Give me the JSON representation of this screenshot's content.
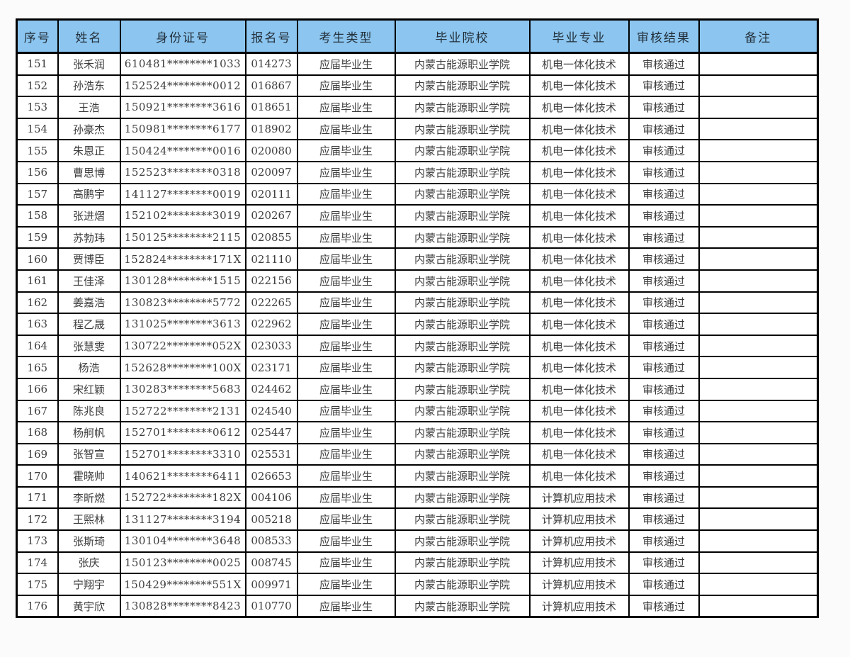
{
  "colors": {
    "header_bg": "#8cc6f0",
    "grid_line": "#000000",
    "body_text": "#3c3c3c",
    "page_bg": "#fbfbfb"
  },
  "table": {
    "headers": [
      "序号",
      "姓名",
      "身份证号",
      "报名号",
      "考生类型",
      "毕业院校",
      "毕业专业",
      "审核结果",
      "备注"
    ],
    "rows": [
      [
        "151",
        "张禾润",
        "610481********1033",
        "014273",
        "应届毕业生",
        "内蒙古能源职业学院",
        "机电一体化技术",
        "审核通过",
        ""
      ],
      [
        "152",
        "孙浩东",
        "152524********0012",
        "016867",
        "应届毕业生",
        "内蒙古能源职业学院",
        "机电一体化技术",
        "审核通过",
        ""
      ],
      [
        "153",
        "王浩",
        "150921********3616",
        "018651",
        "应届毕业生",
        "内蒙古能源职业学院",
        "机电一体化技术",
        "审核通过",
        ""
      ],
      [
        "154",
        "孙豪杰",
        "150981********6177",
        "018902",
        "应届毕业生",
        "内蒙古能源职业学院",
        "机电一体化技术",
        "审核通过",
        ""
      ],
      [
        "155",
        "朱恩正",
        "150424********0016",
        "020080",
        "应届毕业生",
        "内蒙古能源职业学院",
        "机电一体化技术",
        "审核通过",
        ""
      ],
      [
        "156",
        "曹思博",
        "152523********0318",
        "020097",
        "应届毕业生",
        "内蒙古能源职业学院",
        "机电一体化技术",
        "审核通过",
        ""
      ],
      [
        "157",
        "高鹏宇",
        "141127********0019",
        "020111",
        "应届毕业生",
        "内蒙古能源职业学院",
        "机电一体化技术",
        "审核通过",
        ""
      ],
      [
        "158",
        "张进熠",
        "152102********3019",
        "020267",
        "应届毕业生",
        "内蒙古能源职业学院",
        "机电一体化技术",
        "审核通过",
        ""
      ],
      [
        "159",
        "苏勃玮",
        "150125********2115",
        "020855",
        "应届毕业生",
        "内蒙古能源职业学院",
        "机电一体化技术",
        "审核通过",
        ""
      ],
      [
        "160",
        "贾博臣",
        "152824********171X",
        "021110",
        "应届毕业生",
        "内蒙古能源职业学院",
        "机电一体化技术",
        "审核通过",
        ""
      ],
      [
        "161",
        "王佳泽",
        "130128********1515",
        "022156",
        "应届毕业生",
        "内蒙古能源职业学院",
        "机电一体化技术",
        "审核通过",
        ""
      ],
      [
        "162",
        "姜嘉浩",
        "130823********5772",
        "022265",
        "应届毕业生",
        "内蒙古能源职业学院",
        "机电一体化技术",
        "审核通过",
        ""
      ],
      [
        "163",
        "程乙晟",
        "131025********3613",
        "022962",
        "应届毕业生",
        "内蒙古能源职业学院",
        "机电一体化技术",
        "审核通过",
        ""
      ],
      [
        "164",
        "张慧雯",
        "130722********052X",
        "023033",
        "应届毕业生",
        "内蒙古能源职业学院",
        "机电一体化技术",
        "审核通过",
        ""
      ],
      [
        "165",
        "杨浩",
        "152628********100X",
        "023171",
        "应届毕业生",
        "内蒙古能源职业学院",
        "机电一体化技术",
        "审核通过",
        ""
      ],
      [
        "166",
        "宋红颖",
        "130283********5683",
        "024462",
        "应届毕业生",
        "内蒙古能源职业学院",
        "机电一体化技术",
        "审核通过",
        ""
      ],
      [
        "167",
        "陈兆良",
        "152722********2131",
        "024540",
        "应届毕业生",
        "内蒙古能源职业学院",
        "机电一体化技术",
        "审核通过",
        ""
      ],
      [
        "168",
        "杨舸帆",
        "152701********0612",
        "025447",
        "应届毕业生",
        "内蒙古能源职业学院",
        "机电一体化技术",
        "审核通过",
        ""
      ],
      [
        "169",
        "张智宣",
        "152701********3310",
        "025531",
        "应届毕业生",
        "内蒙古能源职业学院",
        "机电一体化技术",
        "审核通过",
        ""
      ],
      [
        "170",
        "霍晓帅",
        "140621********6411",
        "026653",
        "应届毕业生",
        "内蒙古能源职业学院",
        "机电一体化技术",
        "审核通过",
        ""
      ],
      [
        "171",
        "李昕燃",
        "152722********182X",
        "004106",
        "应届毕业生",
        "内蒙古能源职业学院",
        "计算机应用技术",
        "审核通过",
        ""
      ],
      [
        "172",
        "王熙林",
        "131127********3194",
        "005218",
        "应届毕业生",
        "内蒙古能源职业学院",
        "计算机应用技术",
        "审核通过",
        ""
      ],
      [
        "173",
        "张斯琦",
        "130104********3648",
        "008533",
        "应届毕业生",
        "内蒙古能源职业学院",
        "计算机应用技术",
        "审核通过",
        ""
      ],
      [
        "174",
        "张庆",
        "150123********0025",
        "008745",
        "应届毕业生",
        "内蒙古能源职业学院",
        "计算机应用技术",
        "审核通过",
        ""
      ],
      [
        "175",
        "宁翔宇",
        "150429********551X",
        "009971",
        "应届毕业生",
        "内蒙古能源职业学院",
        "计算机应用技术",
        "审核通过",
        ""
      ],
      [
        "176",
        "黄宇欣",
        "130828********8423",
        "010770",
        "应届毕业生",
        "内蒙古能源职业学院",
        "计算机应用技术",
        "审核通过",
        ""
      ]
    ]
  }
}
